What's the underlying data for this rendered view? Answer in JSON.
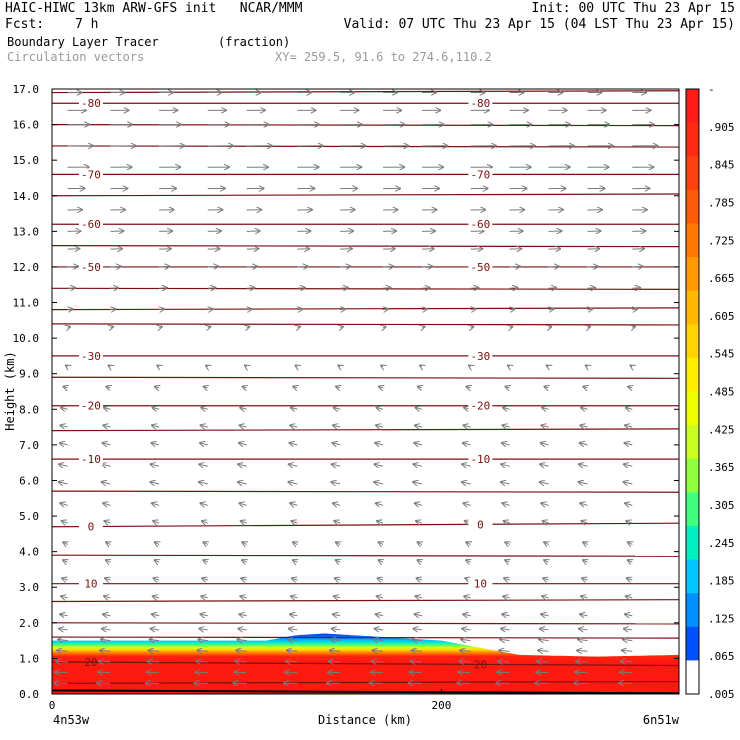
{
  "header": {
    "title_left": "HAIC-HIWC 13km ARW-GFS init   NCAR/MMM",
    "init": "Init: 00 UTC Thu 23 Apr 15",
    "fcst_label": "Fcst:",
    "fcst_value": "7 h",
    "valid": "Valid: 07 UTC Thu 23 Apr 15 (04 LST Thu 23 Apr 15)",
    "field": "Boundary Layer Tracer",
    "field_units": "(fraction)",
    "vectors": "Circulation vectors",
    "xy": "XY= 259.5, 91.6 to 274.6,110.2"
  },
  "chart_data": {
    "type": "heatmap",
    "title": "Boundary Layer Tracer",
    "xlabel": "Distance (km)",
    "ylabel": "Height (km)",
    "xlim": [
      0,
      322
    ],
    "ylim": [
      0,
      17
    ],
    "x_ticks": [
      0,
      200
    ],
    "x_tick_labels": [
      "0",
      "200"
    ],
    "x_end_labels": [
      "4n53w",
      "6n51w"
    ],
    "y_ticks": [
      0,
      1,
      2,
      3,
      4,
      5,
      6,
      7,
      8,
      9,
      10,
      11,
      12,
      13,
      14,
      15,
      16,
      17
    ],
    "y_tick_labels": [
      "0.0",
      "1.0",
      "2.0",
      "3.0",
      "4.0",
      "5.0",
      "6.0",
      "7.0",
      "8.0",
      "9.0",
      "10.0",
      "11.0",
      "12.0",
      "13.0",
      "14.0",
      "15.0",
      "16.0",
      "17.0"
    ],
    "colorbar": {
      "labels": [
        "-",
        ".905",
        ".845",
        ".785",
        ".725",
        ".665",
        ".605",
        ".545",
        ".485",
        ".425",
        ".365",
        ".305",
        ".245",
        ".185",
        ".125",
        ".065",
        ".005"
      ],
      "colors": [
        "#ff1a1a",
        "#ff2a14",
        "#ff4010",
        "#ff5a0a",
        "#ff7806",
        "#ff9a00",
        "#ffb800",
        "#ffd400",
        "#ffee00",
        "#f0ff00",
        "#c8ff20",
        "#90ff40",
        "#40ff80",
        "#00f0c0",
        "#00c8ff",
        "#0090ff",
        "#0050ff",
        "#0020f0"
      ]
    },
    "tracer_top_km": [
      [
        0,
        1.5
      ],
      [
        80,
        1.5
      ],
      [
        110,
        1.5
      ],
      [
        125,
        1.65
      ],
      [
        140,
        1.7
      ],
      [
        170,
        1.6
      ],
      [
        200,
        1.5
      ],
      [
        225,
        1.25
      ],
      [
        240,
        1.1
      ],
      [
        280,
        1.05
      ],
      [
        322,
        1.1
      ]
    ],
    "contours": {
      "label": "temperature",
      "levels": [
        {
          "value": -80,
          "labels": [
            "-80",
            "-80"
          ],
          "heights": [
            16.6,
            16.6
          ]
        },
        {
          "value": -70,
          "labels": [
            "-70",
            "-70"
          ],
          "heights": [
            14.6,
            14.6
          ]
        },
        {
          "value": -60,
          "labels": [
            "-60",
            "-60"
          ],
          "heights": [
            13.2,
            13.2
          ]
        },
        {
          "value": -50,
          "labels": [
            "-50",
            "-50"
          ],
          "heights": [
            12.0,
            12.0
          ]
        },
        {
          "value": -30,
          "labels": [
            "-30",
            "-30"
          ],
          "heights": [
            9.5,
            9.5
          ]
        },
        {
          "value": -20,
          "labels": [
            "-20",
            "-20"
          ],
          "heights": [
            8.1,
            8.1
          ]
        },
        {
          "value": -10,
          "labels": [
            "-10",
            "-10"
          ],
          "heights": [
            6.6,
            6.6
          ]
        },
        {
          "value": 0,
          "labels": [
            "0",
            "0"
          ],
          "heights": [
            4.7,
            4.8
          ]
        },
        {
          "value": 10,
          "labels": [
            "10",
            "10"
          ],
          "heights": [
            3.1,
            3.1
          ]
        },
        {
          "value": 20,
          "labels": [
            "20",
            "20"
          ],
          "heights": [
            0.9,
            0.8
          ]
        }
      ],
      "unlabeled_heights_km": [
        16.9,
        16.0,
        15.4,
        14.0,
        12.6,
        11.4,
        10.8,
        10.4,
        8.9,
        7.4,
        5.7,
        3.9,
        2.6,
        2.0,
        1.6,
        0.3
      ]
    },
    "vectors": {
      "columns_km": [
        8,
        30,
        55,
        80,
        100,
        126,
        148,
        170,
        190,
        215,
        235,
        255,
        275,
        298
      ],
      "rows_km": [
        0.3,
        0.6,
        0.9,
        1.2,
        1.5,
        1.8,
        2.2,
        2.7,
        3.2,
        3.7,
        4.2,
        4.8,
        5.3,
        5.9,
        6.4,
        7.0,
        7.5,
        8.0,
        8.6,
        9.2,
        9.7,
        10.3,
        10.8,
        11.4,
        12.0,
        12.5,
        13.0,
        13.6,
        14.2,
        14.8,
        15.4,
        16.0,
        16.4,
        16.9
      ],
      "u_profile": [
        [
          0,
          -0.55
        ],
        [
          2,
          -0.3
        ],
        [
          4,
          -0.15
        ],
        [
          6,
          -0.35
        ],
        [
          8,
          -0.25
        ],
        [
          10,
          0.05
        ],
        [
          12,
          0.4
        ],
        [
          14,
          0.6
        ],
        [
          15.5,
          1.0
        ],
        [
          17,
          0.5
        ]
      ],
      "w_profile": [
        [
          0,
          0.0
        ],
        [
          1.5,
          0.15
        ],
        [
          4,
          0.3
        ],
        [
          7,
          0.25
        ],
        [
          10,
          0.1
        ],
        [
          13,
          0.05
        ],
        [
          17,
          0.0
        ]
      ]
    }
  }
}
